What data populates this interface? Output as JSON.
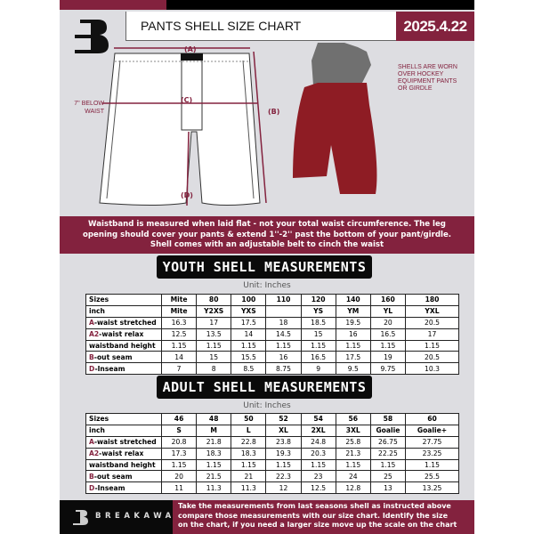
{
  "header": {
    "title": "PANTS SHELL SIZE CHART",
    "date": "2025.4.22"
  },
  "diagram": {
    "label_a": "(A)",
    "label_b": "(B)",
    "label_c": "(C)",
    "label_d": "(D)",
    "note_c": [
      "7'' BELOW",
      "WAIST"
    ],
    "note_right": [
      "SHELLS ARE WORN",
      "OVER HOCKEY",
      "EQUIPMENT PANTS",
      "OR GIRDLE"
    ]
  },
  "banner": {
    "lines": [
      "Waistband is measured when laid flat - not your total waist circumference. The leg",
      "opening should cover your pants & extend 1''-2'' past the bottom of your pant/girdle.",
      "Shell comes with an adjustable belt to cinch the waist"
    ]
  },
  "youth": {
    "title": "YOUTH SHELL MEASUREMENTS",
    "unit": "Unit: Inches",
    "rows": [
      {
        "prefix": "",
        "label": "Sizes",
        "values": [
          "Mite",
          "80",
          "100",
          "110",
          "120",
          "140",
          "160",
          "180"
        ]
      },
      {
        "prefix": "",
        "label": "inch",
        "values": [
          "Mite",
          "Y2XS",
          "YXS",
          "",
          "YS",
          "YM",
          "YL",
          "YXL"
        ]
      },
      {
        "prefix": "A",
        "label": "-waist stretched",
        "values": [
          "16.3",
          "17",
          "17.5",
          "18",
          "18.5",
          "19.5",
          "20",
          "20.5"
        ]
      },
      {
        "prefix": "A2",
        "label": "-waist relax",
        "values": [
          "12.5",
          "13.5",
          "14",
          "14.5",
          "15",
          "16",
          "16.5",
          "17"
        ]
      },
      {
        "prefix": "",
        "label": "waistband height",
        "values": [
          "1.15",
          "1.15",
          "1.15",
          "1.15",
          "1.15",
          "1.15",
          "1.15",
          "1.15"
        ]
      },
      {
        "prefix": "B",
        "label": "-out seam",
        "values": [
          "14",
          "15",
          "15.5",
          "16",
          "16.5",
          "17.5",
          "19",
          "20.5"
        ]
      },
      {
        "prefix": "D",
        "label": "-Inseam",
        "values": [
          "7",
          "8",
          "8.5",
          "8.75",
          "9",
          "9.5",
          "9.75",
          "10.3"
        ]
      }
    ]
  },
  "adult": {
    "title": "ADULT SHELL MEASUREMENTS",
    "unit": "Unit: Inches",
    "rows": [
      {
        "prefix": "",
        "label": "Sizes",
        "values": [
          "46",
          "48",
          "50",
          "52",
          "54",
          "56",
          "58",
          "60"
        ]
      },
      {
        "prefix": "",
        "label": "inch",
        "values": [
          "S",
          "M",
          "L",
          "XL",
          "2XL",
          "3XL",
          "Goalie",
          "Goalie+"
        ]
      },
      {
        "prefix": "A",
        "label": "-waist stretched",
        "values": [
          "20.8",
          "21.8",
          "22.8",
          "23.8",
          "24.8",
          "25.8",
          "26.75",
          "27.75"
        ]
      },
      {
        "prefix": "A2",
        "label": "-waist relax",
        "values": [
          "17.3",
          "18.3",
          "18.3",
          "19.3",
          "20.3",
          "21.3",
          "22.25",
          "23.25"
        ]
      },
      {
        "prefix": "",
        "label": "waistband height",
        "values": [
          "1.15",
          "1.15",
          "1.15",
          "1.15",
          "1.15",
          "1.15",
          "1.15",
          "1.15"
        ]
      },
      {
        "prefix": "B",
        "label": "-out seam",
        "values": [
          "20",
          "21.5",
          "21",
          "22.3",
          "23",
          "24",
          "25",
          "25.5"
        ]
      },
      {
        "prefix": "D",
        "label": "-Inseam",
        "values": [
          "11",
          "11.3",
          "11.3",
          "12",
          "12.5",
          "12.8",
          "13",
          "13.25"
        ]
      }
    ]
  },
  "footer": {
    "brand": "BREAKAWAY",
    "lines": [
      "Take the measurements from last seasons shell as instructed above",
      "compare those measurements  with our size chart. Identify the size",
      "on the chart, if you need a larger size move up the scale on the chart"
    ]
  },
  "colors": {
    "accent": "#83223e",
    "background": "#dddde1",
    "dark": "#0a0a0a"
  }
}
